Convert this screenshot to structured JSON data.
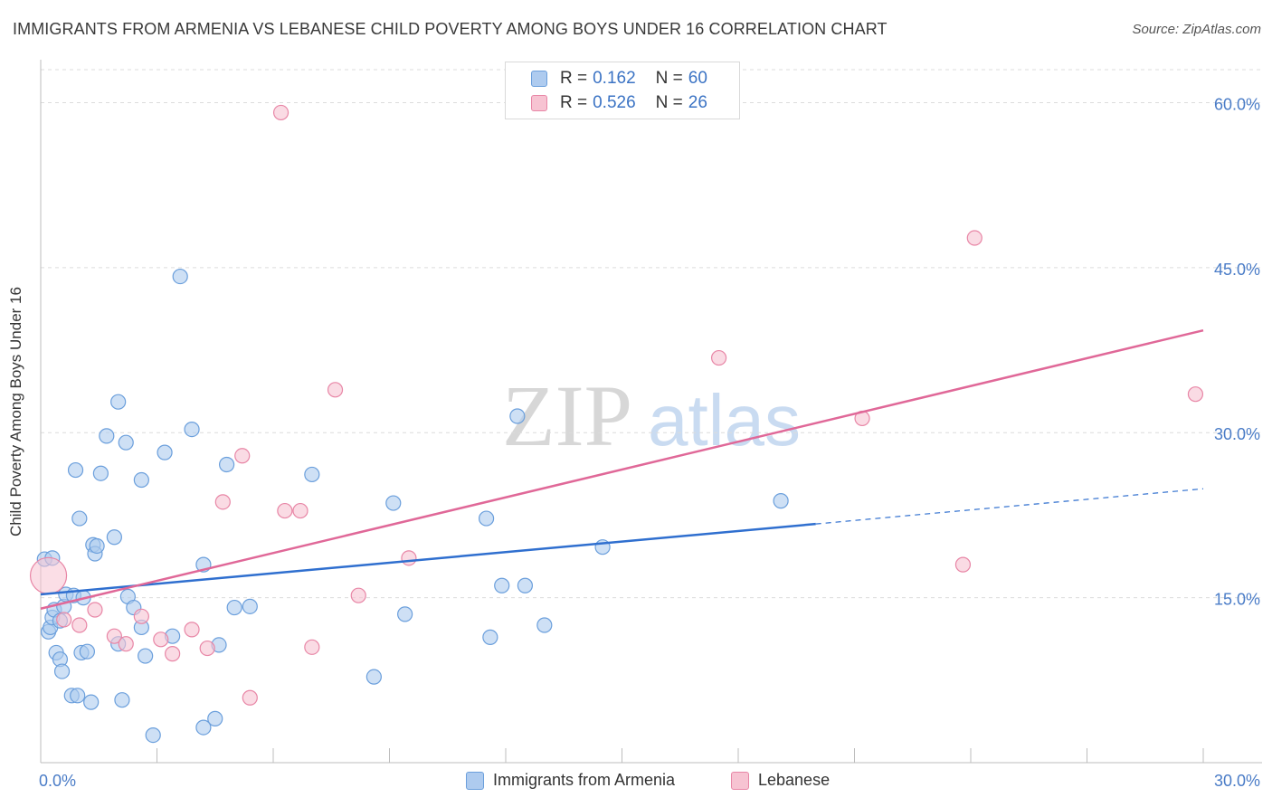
{
  "title": "IMMIGRANTS FROM ARMENIA VS LEBANESE CHILD POVERTY AMONG BOYS UNDER 16 CORRELATION CHART",
  "source": "Source: ZipAtlas.com",
  "watermark": {
    "zip": "ZIP",
    "atlas": "atlas"
  },
  "legend": {
    "r_label": "R =",
    "n_label": "N =",
    "rows": [
      {
        "r": "0.162",
        "n": "60",
        "color": "#aecbef",
        "border": "#6b9fdc"
      },
      {
        "r": "0.526",
        "n": "26",
        "color": "#f7c3d2",
        "border": "#e886a6"
      }
    ]
  },
  "bottom_legend": [
    {
      "label": "Immigrants from Armenia",
      "color": "#aecbef",
      "border": "#6b9fdc"
    },
    {
      "label": "Lebanese",
      "color": "#f7c3d2",
      "border": "#e886a6"
    }
  ],
  "chart_data": {
    "type": "scatter",
    "title": "IMMIGRANTS FROM ARMENIA VS LEBANESE CHILD POVERTY AMONG BOYS UNDER 16 CORRELATION CHART",
    "xlabel": "",
    "ylabel": "Child Poverty Among Boys Under 16",
    "xlim": [
      0,
      30
    ],
    "ylim": [
      0,
      63
    ],
    "x_tick_labels": [
      "0.0%",
      "30.0%"
    ],
    "y_ticks": [
      15,
      30,
      45,
      60
    ],
    "y_tick_labels": [
      "15.0%",
      "30.0%",
      "45.0%",
      "60.0%"
    ],
    "grid": true,
    "series": [
      {
        "name": "Immigrants from Armenia",
        "color": "#aecbef",
        "stroke": "#6b9fdc",
        "trend_color": "#2f6fcf",
        "trend": {
          "x0": 0,
          "y0": 15.3,
          "x1": 20,
          "y1": 21.7,
          "dash_to_x": 30,
          "dash_to_y": 24.9
        },
        "points": [
          [
            0.1,
            18.5
          ],
          [
            0.2,
            11.9
          ],
          [
            0.25,
            12.3
          ],
          [
            0.3,
            18.6
          ],
          [
            0.3,
            13.2
          ],
          [
            0.35,
            13.9
          ],
          [
            0.4,
            10.0
          ],
          [
            0.5,
            9.4
          ],
          [
            0.5,
            12.9
          ],
          [
            0.55,
            8.3
          ],
          [
            0.6,
            14.2
          ],
          [
            0.65,
            15.3
          ],
          [
            0.8,
            6.1
          ],
          [
            0.85,
            15.2
          ],
          [
            0.9,
            26.6
          ],
          [
            0.95,
            6.1
          ],
          [
            1.0,
            22.2
          ],
          [
            1.05,
            10.0
          ],
          [
            1.1,
            15.0
          ],
          [
            1.2,
            10.1
          ],
          [
            1.3,
            5.5
          ],
          [
            1.35,
            19.8
          ],
          [
            1.4,
            19.0
          ],
          [
            1.45,
            19.7
          ],
          [
            1.55,
            26.3
          ],
          [
            1.7,
            29.7
          ],
          [
            1.9,
            20.5
          ],
          [
            2.0,
            10.8
          ],
          [
            2.0,
            32.8
          ],
          [
            2.1,
            5.7
          ],
          [
            2.2,
            29.1
          ],
          [
            2.25,
            15.1
          ],
          [
            2.4,
            14.1
          ],
          [
            2.6,
            12.3
          ],
          [
            2.6,
            25.7
          ],
          [
            2.7,
            9.7
          ],
          [
            2.9,
            2.5
          ],
          [
            3.2,
            28.2
          ],
          [
            3.4,
            11.5
          ],
          [
            3.6,
            44.2
          ],
          [
            3.9,
            30.3
          ],
          [
            4.2,
            3.2
          ],
          [
            4.2,
            18.0
          ],
          [
            4.5,
            4.0
          ],
          [
            4.6,
            10.7
          ],
          [
            4.8,
            27.1
          ],
          [
            5.0,
            14.1
          ],
          [
            5.4,
            14.2
          ],
          [
            7.0,
            26.2
          ],
          [
            8.6,
            7.8
          ],
          [
            9.1,
            23.6
          ],
          [
            9.4,
            13.5
          ],
          [
            11.5,
            22.2
          ],
          [
            11.6,
            11.4
          ],
          [
            11.9,
            16.1
          ],
          [
            12.3,
            31.5
          ],
          [
            12.5,
            16.1
          ],
          [
            13.0,
            12.5
          ],
          [
            14.5,
            19.6
          ],
          [
            19.1,
            23.8
          ]
        ]
      },
      {
        "name": "Lebanese",
        "color": "#f7c3d2",
        "stroke": "#e886a6",
        "trend_color": "#e06898",
        "trend": {
          "x0": 0,
          "y0": 14.0,
          "x1": 30,
          "y1": 39.3
        },
        "points": [
          [
            0.2,
            17.0
          ],
          [
            0.6,
            13.0
          ],
          [
            1.0,
            12.5
          ],
          [
            1.4,
            13.9
          ],
          [
            1.9,
            11.5
          ],
          [
            2.2,
            10.8
          ],
          [
            2.6,
            13.3
          ],
          [
            3.1,
            11.2
          ],
          [
            3.4,
            9.9
          ],
          [
            3.9,
            12.1
          ],
          [
            4.3,
            10.4
          ],
          [
            4.7,
            23.7
          ],
          [
            5.2,
            27.9
          ],
          [
            5.4,
            5.9
          ],
          [
            6.2,
            59.1
          ],
          [
            6.3,
            22.9
          ],
          [
            6.7,
            22.9
          ],
          [
            7.0,
            10.5
          ],
          [
            7.6,
            33.9
          ],
          [
            8.2,
            15.2
          ],
          [
            9.5,
            18.6
          ],
          [
            17.5,
            36.8
          ],
          [
            21.2,
            31.3
          ],
          [
            23.8,
            18.0
          ],
          [
            24.1,
            47.7
          ],
          [
            29.8,
            33.5
          ]
        ]
      }
    ]
  }
}
